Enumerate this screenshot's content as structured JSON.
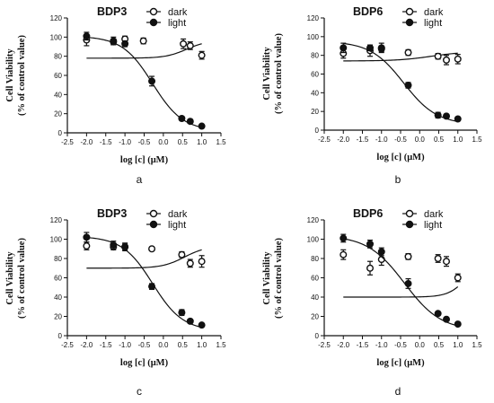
{
  "chart_data": [
    {
      "type": "scatter",
      "panel_label": "a",
      "title": "BDP3",
      "ylabel": [
        "Cell Viability",
        "(% of control value)"
      ],
      "xlabel": "log [c] (μM)",
      "xlim": [
        -2.5,
        1.5
      ],
      "ylim": [
        0,
        120
      ],
      "xticks": [
        "-2.5",
        "-2.0",
        "-1.5",
        "-1.0",
        "-0.5",
        "0.0",
        "0.5",
        "1.0",
        "1.5"
      ],
      "yticks": [
        "0",
        "20",
        "40",
        "60",
        "80",
        "100",
        "120"
      ],
      "legend_position": "top-right",
      "series": [
        {
          "name": "dark",
          "marker": "open-circle",
          "x": [
            -2.0,
            -1.3,
            -1.0,
            -0.52,
            0.52,
            0.7,
            1.0
          ],
          "y": [
            97,
            96,
            98,
            96,
            93,
            91,
            81
          ],
          "err": [
            6,
            4,
            3,
            3,
            5,
            4,
            4
          ],
          "fit": {
            "top": 96.5,
            "bottom": 78,
            "logEC50": 0.6,
            "hill": 1.6
          }
        },
        {
          "name": "light",
          "marker": "filled-circle",
          "x": [
            -2.0,
            -1.3,
            -1.0,
            -0.3,
            0.48,
            0.7,
            1.0
          ],
          "y": [
            101,
            95,
            93,
            54,
            15,
            12,
            7
          ],
          "err": [
            4,
            3,
            3,
            5,
            2,
            2,
            1
          ],
          "fit": {
            "top": 101,
            "bottom": 2,
            "logEC50": -0.28,
            "hill": -1.1
          }
        }
      ]
    },
    {
      "type": "scatter",
      "panel_label": "b",
      "title": "BDP6",
      "ylabel": [
        "Cell Viability",
        "(% of control value)"
      ],
      "xlabel": "log [c] (μM)",
      "xlim": [
        -2.5,
        1.5
      ],
      "ylim": [
        0,
        120
      ],
      "xticks": [
        "-2.5",
        "-2.0",
        "-1.5",
        "-1.0",
        "-0.5",
        "0.0",
        "0.5",
        "1.0",
        "1.5"
      ],
      "yticks": [
        "0",
        "20",
        "40",
        "60",
        "80",
        "100",
        "120"
      ],
      "legend_position": "top-right",
      "series": [
        {
          "name": "dark",
          "marker": "open-circle",
          "x": [
            -2.0,
            -1.3,
            -1.0,
            -0.3,
            0.48,
            0.7,
            1.0
          ],
          "y": [
            82,
            85,
            88,
            83,
            79,
            75,
            76
          ],
          "err": [
            5,
            6,
            5,
            3,
            3,
            5,
            5
          ],
          "fit": {
            "top": 84,
            "bottom": 74,
            "logEC50": 0.3,
            "hill": 1.0
          }
        },
        {
          "name": "light",
          "marker": "filled-circle",
          "x": [
            -2.0,
            -1.3,
            -1.0,
            -0.3,
            0.48,
            0.7,
            1.0
          ],
          "y": [
            88,
            88,
            87,
            48,
            16,
            15,
            12
          ],
          "err": [
            5,
            3,
            3,
            3,
            3,
            2,
            1
          ],
          "fit": {
            "top": 95,
            "bottom": 6,
            "logEC50": -0.42,
            "hill": -1.0
          }
        }
      ]
    },
    {
      "type": "scatter",
      "panel_label": "c",
      "title": "BDP3",
      "ylabel": [
        "Cell Viability",
        "(% of control value)"
      ],
      "xlabel": "log [c] (μM)",
      "xlim": [
        -2.5,
        1.5
      ],
      "ylim": [
        0,
        120
      ],
      "xticks": [
        "-2.5",
        "-2.0",
        "-1.5",
        "-1.0",
        "-0.5",
        "0.0",
        "0.5",
        "1.0",
        "1.5"
      ],
      "yticks": [
        "0",
        "20",
        "40",
        "60",
        "80",
        "100",
        "120"
      ],
      "legend_position": "top-right",
      "series": [
        {
          "name": "dark",
          "marker": "open-circle",
          "x": [
            -2.0,
            -1.3,
            -1.0,
            -0.3,
            0.48,
            0.7,
            1.0
          ],
          "y": [
            93,
            92,
            92,
            90,
            84,
            75,
            77
          ],
          "err": [
            4,
            3,
            4,
            2,
            3,
            4,
            6
          ],
          "fit": {
            "top": 93,
            "bottom": 70,
            "logEC50": 0.55,
            "hill": 1.5
          }
        },
        {
          "name": "light",
          "marker": "filled-circle",
          "x": [
            -2.0,
            -1.3,
            -1.0,
            -0.3,
            0.48,
            0.7,
            1.0
          ],
          "y": [
            102,
            94,
            92,
            51,
            24,
            15,
            11
          ],
          "err": [
            5,
            4,
            3,
            3,
            3,
            2,
            1
          ],
          "fit": {
            "top": 103,
            "bottom": 5,
            "logEC50": -0.28,
            "hill": -1.1
          }
        }
      ]
    },
    {
      "type": "scatter",
      "panel_label": "d",
      "title": "BDP6",
      "ylabel": [
        "Cell Viability",
        "(% of control value)"
      ],
      "xlabel": "log [c] (μM)",
      "xlim": [
        -2.5,
        1.5
      ],
      "ylim": [
        0,
        120
      ],
      "xticks": [
        "-2.5",
        "-2.0",
        "-1.5",
        "-1.0",
        "-0.5",
        "0.0",
        "0.5",
        "1.0",
        "1.5"
      ],
      "yticks": [
        "0",
        "20",
        "40",
        "60",
        "80",
        "100",
        "120"
      ],
      "legend_position": "top-right",
      "series": [
        {
          "name": "dark",
          "marker": "open-circle",
          "x": [
            -2.0,
            -1.3,
            -1.0,
            -0.3,
            0.48,
            0.7,
            1.0
          ],
          "y": [
            84,
            70,
            79,
            82,
            80,
            77,
            60
          ],
          "err": [
            5,
            7,
            6,
            3,
            4,
            5,
            4
          ],
          "fit": {
            "top": 81,
            "bottom": 40,
            "logEC50": 1.25,
            "hill": 1.8
          }
        },
        {
          "name": "light",
          "marker": "filled-circle",
          "x": [
            -2.0,
            -1.3,
            -1.0,
            -0.3,
            0.48,
            0.7,
            1.0
          ],
          "y": [
            101,
            95,
            87,
            54,
            23,
            17,
            12
          ],
          "err": [
            4,
            4,
            4,
            5,
            2,
            2,
            1
          ],
          "fit": {
            "top": 104,
            "bottom": 5,
            "logEC50": -0.4,
            "hill": -0.9
          }
        }
      ]
    }
  ]
}
